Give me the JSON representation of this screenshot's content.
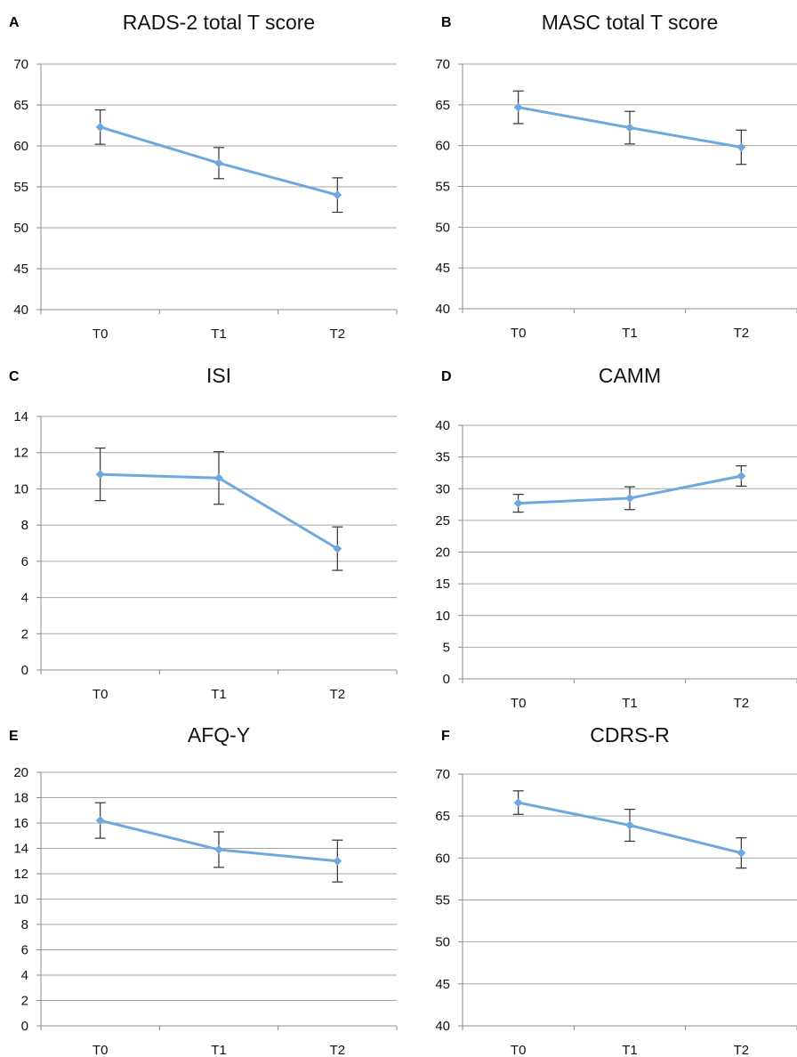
{
  "chart_data": [
    {
      "panel": "A",
      "type": "line",
      "title": "RADS-2 total T score",
      "categories": [
        "T0",
        "T1",
        "T2"
      ],
      "series": [
        {
          "values": [
            62.3,
            57.9,
            54.0
          ],
          "error": [
            2.1,
            1.9,
            2.1
          ]
        }
      ],
      "ylim": [
        40,
        70
      ],
      "yticks": [
        40,
        45,
        50,
        55,
        60,
        65,
        70
      ],
      "grid": true,
      "legend": "none",
      "color": "#6fa8dc"
    },
    {
      "panel": "B",
      "type": "line",
      "title": "MASC total T score",
      "categories": [
        "T0",
        "T1",
        "T2"
      ],
      "series": [
        {
          "values": [
            64.7,
            62.2,
            59.8
          ],
          "error": [
            2.0,
            2.0,
            2.1
          ]
        }
      ],
      "ylim": [
        40,
        70
      ],
      "yticks": [
        40,
        45,
        50,
        55,
        60,
        65,
        70
      ],
      "grid": true,
      "legend": "none",
      "color": "#6fa8dc"
    },
    {
      "panel": "C",
      "type": "line",
      "title": "ISI",
      "categories": [
        "T0",
        "T1",
        "T2"
      ],
      "series": [
        {
          "values": [
            10.8,
            10.6,
            6.7
          ],
          "error": [
            1.45,
            1.45,
            1.2
          ]
        }
      ],
      "ylim": [
        0,
        14
      ],
      "yticks": [
        0,
        2,
        4,
        6,
        8,
        10,
        12,
        14
      ],
      "grid": true,
      "legend": "none",
      "color": "#6fa8dc"
    },
    {
      "panel": "D",
      "type": "line",
      "title": "CAMM",
      "categories": [
        "T0",
        "T1",
        "T2"
      ],
      "series": [
        {
          "values": [
            27.7,
            28.5,
            32.0
          ],
          "error": [
            1.4,
            1.8,
            1.6
          ]
        }
      ],
      "ylim": [
        0,
        40
      ],
      "yticks": [
        0,
        5,
        10,
        15,
        20,
        25,
        30,
        35,
        40
      ],
      "grid": true,
      "legend": "none",
      "color": "#6fa8dc"
    },
    {
      "panel": "E",
      "type": "line",
      "title": "AFQ-Y",
      "categories": [
        "T0",
        "T1",
        "T2"
      ],
      "series": [
        {
          "values": [
            16.2,
            13.9,
            13.0
          ],
          "error": [
            1.4,
            1.4,
            1.65
          ]
        }
      ],
      "ylim": [
        0,
        20
      ],
      "yticks": [
        0,
        2,
        4,
        6,
        8,
        10,
        12,
        14,
        16,
        18,
        20
      ],
      "grid": true,
      "legend": "none",
      "color": "#6fa8dc"
    },
    {
      "panel": "F",
      "type": "line",
      "title": "CDRS-R",
      "categories": [
        "T0",
        "T1",
        "T2"
      ],
      "series": [
        {
          "values": [
            66.6,
            63.9,
            60.6
          ],
          "error": [
            1.4,
            1.9,
            1.8
          ]
        }
      ],
      "ylim": [
        40,
        70
      ],
      "yticks": [
        40,
        45,
        50,
        55,
        60,
        65,
        70
      ],
      "grid": true,
      "legend": "none",
      "color": "#6fa8dc"
    }
  ]
}
